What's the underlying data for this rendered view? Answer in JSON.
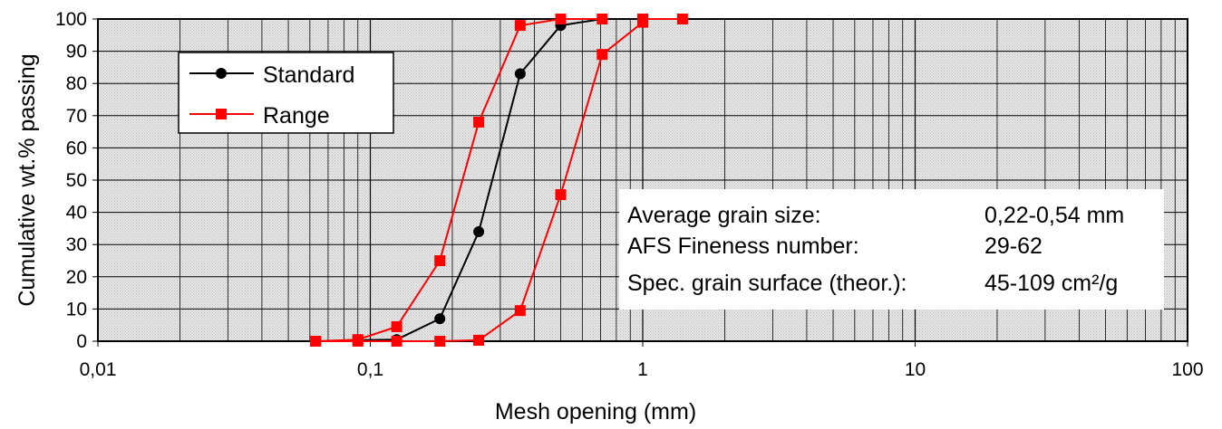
{
  "chart_data": {
    "type": "line",
    "x_scale": "log",
    "xlabel": "Mesh opening (mm)",
    "ylabel": "Cumulative wt.% passing",
    "xlim": [
      0.01,
      100
    ],
    "ylim": [
      0,
      100
    ],
    "x_tick_labels": [
      "0,01",
      "0,1",
      "1",
      "10",
      "100"
    ],
    "y_ticks": [
      0,
      10,
      20,
      30,
      40,
      50,
      60,
      70,
      80,
      90,
      100
    ],
    "grid": true,
    "legend_position": "top-left",
    "series": [
      {
        "name": "Standard",
        "color": "#000000",
        "marker": "circle",
        "points": [
          [
            0.09,
            0.3
          ],
          [
            0.125,
            0.5
          ],
          [
            0.18,
            7
          ],
          [
            0.25,
            34
          ],
          [
            0.355,
            83
          ],
          [
            0.5,
            98
          ],
          [
            0.71,
            100
          ],
          [
            1.0,
            100
          ]
        ]
      },
      {
        "name": "Range",
        "color": "#ff0000",
        "marker": "square",
        "points": [
          [
            0.063,
            0
          ],
          [
            0.09,
            0.5
          ],
          [
            0.125,
            4.5
          ],
          [
            0.18,
            25
          ],
          [
            0.25,
            68
          ],
          [
            0.355,
            98
          ],
          [
            0.5,
            100
          ],
          [
            0.71,
            100
          ]
        ]
      },
      {
        "name": "Range",
        "color": "#ff0000",
        "marker": "square",
        "points": [
          [
            0.063,
            0
          ],
          [
            0.09,
            0
          ],
          [
            0.125,
            0
          ],
          [
            0.18,
            0
          ],
          [
            0.25,
            0.3
          ],
          [
            0.355,
            9.5
          ],
          [
            0.5,
            45.5
          ],
          [
            0.71,
            89
          ],
          [
            1.0,
            99
          ],
          [
            1.0,
            100
          ],
          [
            1.4,
            100
          ]
        ]
      }
    ],
    "annotation": [
      {
        "label": "Average grain size:",
        "value": "0,22-0,54 mm"
      },
      {
        "label": "AFS Fineness number:",
        "value": "29-62"
      },
      {
        "label": "Spec. grain surface (theor.):",
        "value": "45-109 cm²/g"
      }
    ]
  }
}
